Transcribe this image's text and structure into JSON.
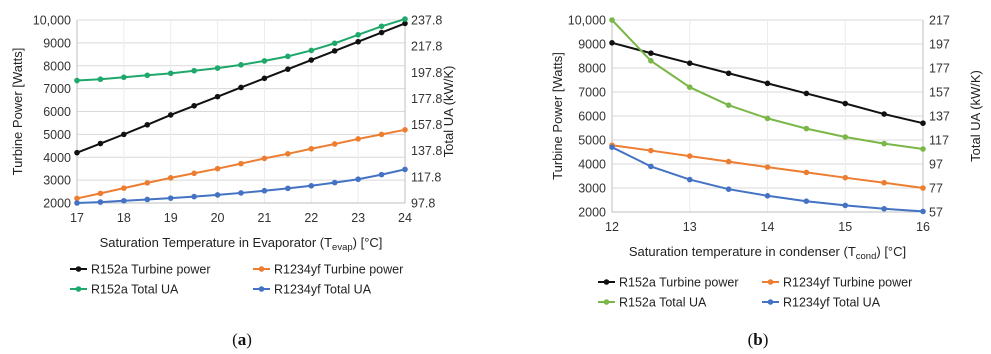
{
  "chart_data": [
    {
      "type": "line",
      "panel_label": "(a)",
      "panel_letter": "a",
      "xlabel_main": "Saturation Temperature in Evaporator (T",
      "xlabel_sub": "evap",
      "xlabel_end": ") [°C]",
      "ylabel_left": "Turbine Power [Watts]",
      "ylabel_right": "Total UA (kW/K)",
      "xlim": [
        17,
        24
      ],
      "ylim_left": [
        2000,
        10000
      ],
      "ylim_right": [
        97.8,
        237.8
      ],
      "x_ticks": [
        "17",
        "18",
        "19",
        "20",
        "21",
        "22",
        "23",
        "24"
      ],
      "y_ticks_left": [
        "2000",
        "3000",
        "4000",
        "5000",
        "6000",
        "7000",
        "8000",
        "9000",
        "10,000"
      ],
      "y_ticks_right": [
        "97.8",
        "117.8",
        "137.8",
        "157.8",
        "177.8",
        "197.8",
        "217.8",
        "237.8"
      ],
      "legend": {
        "placement": "bottom",
        "columns": 2
      },
      "series": [
        {
          "name": "R152a Turbine power",
          "axis": "left",
          "color": "#111111",
          "x": [
            17,
            17.5,
            18,
            18.5,
            19,
            19.5,
            20,
            20.5,
            21,
            21.5,
            22,
            22.5,
            23,
            23.5,
            24
          ],
          "values": [
            4200,
            4600,
            5000,
            5420,
            5850,
            6250,
            6650,
            7050,
            7450,
            7850,
            8250,
            8650,
            9050,
            9450,
            9850
          ]
        },
        {
          "name": "R1234yf Turbine power",
          "axis": "left",
          "color": "#ED7D31",
          "x": [
            17,
            17.5,
            18,
            18.5,
            19,
            19.5,
            20,
            20.5,
            21,
            21.5,
            22,
            22.5,
            23,
            23.5,
            24
          ],
          "values": [
            2200,
            2420,
            2650,
            2880,
            3100,
            3300,
            3500,
            3720,
            3950,
            4150,
            4370,
            4580,
            4800,
            5000,
            5200
          ]
        },
        {
          "name": "R152a Total UA",
          "axis": "right",
          "color": "#1EA86B",
          "x": [
            17,
            17.5,
            18,
            18.5,
            19,
            19.5,
            20,
            20.5,
            21,
            21.5,
            22,
            22.5,
            23,
            23.5,
            24
          ],
          "values": [
            191.5,
            192.5,
            194,
            195.5,
            197,
            199,
            201,
            203.5,
            206.5,
            210,
            214.5,
            220,
            226.5,
            233,
            238.5
          ]
        },
        {
          "name": "R1234yf Total UA",
          "axis": "right",
          "color": "#4472C4",
          "x": [
            17,
            17.5,
            18,
            18.5,
            19,
            19.5,
            20,
            20.5,
            21,
            21.5,
            22,
            22.5,
            23,
            23.5,
            24
          ],
          "values": [
            97.8,
            98.5,
            99.5,
            100.5,
            101.5,
            102.7,
            104,
            105.5,
            107.2,
            109,
            111,
            113.4,
            116,
            119.5,
            123.5
          ]
        }
      ]
    },
    {
      "type": "line",
      "panel_label": "(b)",
      "panel_letter": "b",
      "xlabel_main": "Saturation temperature in condenser (T",
      "xlabel_sub": "cond",
      "xlabel_end": ") [°C]",
      "ylabel_left": "Turbine Power [Watts]",
      "ylabel_right": "Total UA (kW/K)",
      "xlim": [
        12,
        16
      ],
      "ylim_left": [
        2000,
        10000
      ],
      "ylim_right": [
        57,
        217
      ],
      "x_ticks": [
        "12",
        "13",
        "14",
        "15",
        "16"
      ],
      "y_ticks_left": [
        "2000",
        "3000",
        "4000",
        "5000",
        "6000",
        "7000",
        "8000",
        "9000",
        "10,000"
      ],
      "y_ticks_right": [
        "57",
        "77",
        "97",
        "117",
        "137",
        "157",
        "177",
        "197",
        "217"
      ],
      "legend": {
        "placement": "bottom",
        "columns": 2
      },
      "series": [
        {
          "name": "R152a Turbine power",
          "axis": "left",
          "color": "#111111",
          "x": [
            12,
            12.5,
            13,
            13.5,
            14,
            14.5,
            15,
            15.5,
            16
          ],
          "values": [
            9050,
            8620,
            8200,
            7780,
            7360,
            6940,
            6520,
            6080,
            5700
          ]
        },
        {
          "name": "R1234yf Turbine power",
          "axis": "left",
          "color": "#ED7D31",
          "x": [
            12,
            12.5,
            13,
            13.5,
            14,
            14.5,
            15,
            15.5,
            16
          ],
          "values": [
            4780,
            4560,
            4330,
            4100,
            3870,
            3650,
            3430,
            3220,
            3000
          ]
        },
        {
          "name": "R152a Total UA",
          "axis": "right",
          "color": "#7AB648",
          "x": [
            12,
            12.5,
            13,
            13.5,
            14,
            14.5,
            15,
            15.5,
            16
          ],
          "values": [
            217,
            183,
            161,
            146,
            135,
            126.5,
            119.5,
            114,
            109.5
          ]
        },
        {
          "name": "R1234yf Total UA",
          "axis": "right",
          "color": "#4472C4",
          "x": [
            12,
            12.5,
            13,
            13.5,
            14,
            14.5,
            15,
            15.5,
            16
          ],
          "values": [
            111,
            95,
            84,
            76,
            70.5,
            66,
            62.5,
            59.7,
            57.5
          ]
        }
      ]
    }
  ]
}
